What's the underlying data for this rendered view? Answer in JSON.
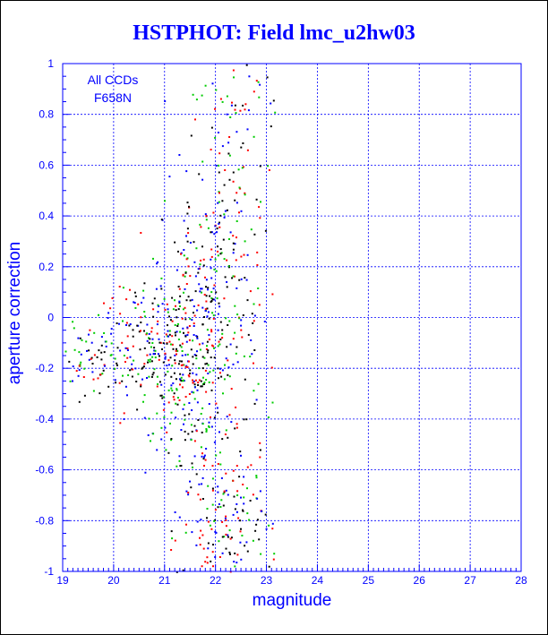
{
  "chart_data": {
    "type": "scatter",
    "title": "HSTPHOT: Field lmc_u2hw03",
    "xlabel": "magnitude",
    "ylabel": "aperture correction",
    "xlim": [
      19,
      28
    ],
    "ylim": [
      -1,
      1
    ],
    "xticks": [
      "19",
      "20",
      "21",
      "22",
      "23",
      "24",
      "25",
      "26",
      "27",
      "28"
    ],
    "yticks": [
      "-1",
      "-0.8",
      "-0.6",
      "-0.4",
      "-0.2",
      "0",
      "0.2",
      "0.4",
      "0.6",
      "0.8",
      "1"
    ],
    "annotation": [
      "All CCDs",
      "F658N"
    ],
    "grid": true,
    "series_colors": [
      "#ff0000",
      "#00cc00",
      "#0000ff",
      "#000000"
    ],
    "clusters": [
      {
        "cx": 19.6,
        "cy": -0.15,
        "sx": 0.35,
        "sy": 0.09,
        "n": 70
      },
      {
        "cx": 20.6,
        "cy": -0.12,
        "sx": 0.4,
        "sy": 0.12,
        "n": 150
      },
      {
        "cx": 21.4,
        "cy": -0.15,
        "sx": 0.35,
        "sy": 0.18,
        "n": 200
      },
      {
        "cx": 21.7,
        "cy": 0.1,
        "sx": 0.45,
        "sy": 0.25,
        "n": 180
      },
      {
        "cx": 21.9,
        "cy": -0.5,
        "sx": 0.55,
        "sy": 0.3,
        "n": 200
      },
      {
        "cx": 22.2,
        "cy": 0.45,
        "sx": 0.45,
        "sy": 0.25,
        "n": 110
      },
      {
        "cx": 22.3,
        "cy": -0.8,
        "sx": 0.5,
        "sy": 0.12,
        "n": 100
      },
      {
        "cx": 22.4,
        "cy": 0.85,
        "sx": 0.55,
        "sy": 0.1,
        "n": 40
      }
    ],
    "xrange_points": [
      19.0,
      23.5
    ]
  }
}
